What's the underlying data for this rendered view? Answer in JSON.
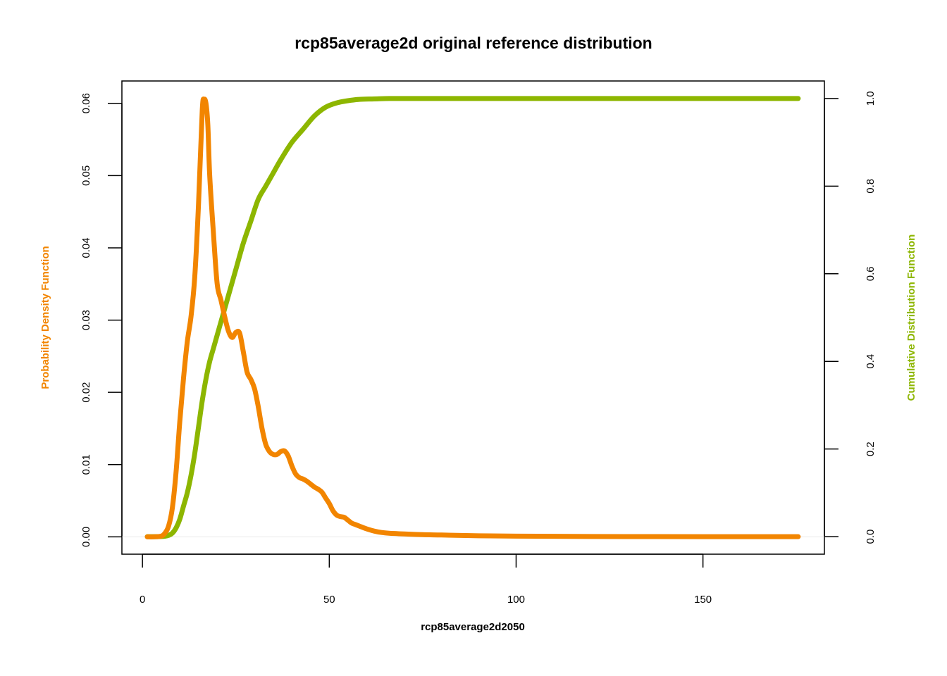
{
  "colors": {
    "pdf": "#F28500",
    "cdf": "#8DB600",
    "axis": "#000000",
    "baseline": "#e8e8e8"
  },
  "chart_data": {
    "type": "line",
    "title": "rcp85average2d original reference distribution",
    "xlabel": "rcp85average2d2050",
    "ylabel": "Probability Density Function",
    "y2label": "Cumulative Distribution Function",
    "xlim": [
      -5.5,
      182.5
    ],
    "ylim": [
      -0.0024,
      0.0631
    ],
    "y2lim": [
      -0.04,
      1.04
    ],
    "x_ticks": [
      "0",
      "50",
      "100",
      "150"
    ],
    "x_tick_values": [
      0,
      50,
      100,
      150
    ],
    "y_ticks": [
      "0.00",
      "0.01",
      "0.02",
      "0.03",
      "0.04",
      "0.05",
      "0.06"
    ],
    "y_tick_values": [
      0,
      0.01,
      0.02,
      0.03,
      0.04,
      0.05,
      0.06
    ],
    "y2_ticks": [
      "0.0",
      "0.2",
      "0.4",
      "0.6",
      "0.8",
      "1.0"
    ],
    "y2_tick_values": [
      0,
      0.2,
      0.4,
      0.6,
      0.8,
      1.0
    ],
    "grid": false,
    "series": [
      {
        "name": "Probability Density Function",
        "axis": "left",
        "x": [
          1.3,
          3,
          5,
          6,
          7,
          8,
          9,
          10,
          11,
          12,
          13,
          14,
          15,
          16,
          16.5,
          17,
          17.5,
          18,
          19,
          20,
          21,
          22,
          23,
          24,
          25,
          26,
          27,
          28,
          29,
          30,
          31,
          32,
          33,
          34,
          35,
          36,
          37,
          38,
          39,
          40,
          41,
          42,
          43,
          44,
          45,
          46,
          47,
          48,
          49,
          50,
          51,
          52,
          53,
          54,
          55,
          56,
          57,
          58,
          60,
          62,
          64,
          66,
          70,
          75,
          80,
          90,
          100,
          120,
          150,
          175.5
        ],
        "y": [
          0,
          0,
          0.0001,
          0.0005,
          0.0015,
          0.004,
          0.009,
          0.016,
          0.022,
          0.027,
          0.0305,
          0.036,
          0.046,
          0.059,
          0.0605,
          0.06,
          0.057,
          0.05,
          0.042,
          0.035,
          0.0328,
          0.0305,
          0.0285,
          0.0276,
          0.0283,
          0.0282,
          0.0256,
          0.0228,
          0.0218,
          0.0205,
          0.018,
          0.015,
          0.0128,
          0.0118,
          0.0114,
          0.0114,
          0.0118,
          0.0119,
          0.0112,
          0.0098,
          0.0087,
          0.0082,
          0.008,
          0.0077,
          0.0073,
          0.0069,
          0.0066,
          0.0062,
          0.0054,
          0.0046,
          0.0036,
          0.003,
          0.0028,
          0.0027,
          0.0023,
          0.0019,
          0.0017,
          0.0015,
          0.0011,
          0.0008,
          0.0006,
          0.0005,
          0.0004,
          0.0003,
          0.00025,
          0.00015,
          0.0001,
          5e-05,
          3e-05,
          2e-05
        ]
      },
      {
        "name": "Cumulative Distribution Function",
        "axis": "right",
        "x": [
          1.3,
          4,
          6,
          7,
          8,
          9,
          10,
          11,
          12,
          13,
          14,
          15,
          16,
          17,
          18,
          19,
          20,
          21,
          22,
          23,
          25,
          27,
          29,
          31,
          33,
          35,
          37,
          40,
          43,
          46,
          49,
          52,
          55,
          58,
          62,
          66,
          70,
          80,
          90,
          100,
          120,
          150,
          175.5
        ],
        "y": [
          0,
          0,
          0.001,
          0.003,
          0.008,
          0.02,
          0.04,
          0.07,
          0.1,
          0.14,
          0.19,
          0.25,
          0.31,
          0.36,
          0.4,
          0.43,
          0.46,
          0.49,
          0.52,
          0.55,
          0.61,
          0.67,
          0.72,
          0.77,
          0.8,
          0.83,
          0.86,
          0.9,
          0.93,
          0.96,
          0.98,
          0.99,
          0.995,
          0.998,
          0.999,
          1.0,
          1.0,
          1.0,
          1.0,
          1.0,
          1.0,
          1.0,
          1.0
        ]
      }
    ]
  }
}
